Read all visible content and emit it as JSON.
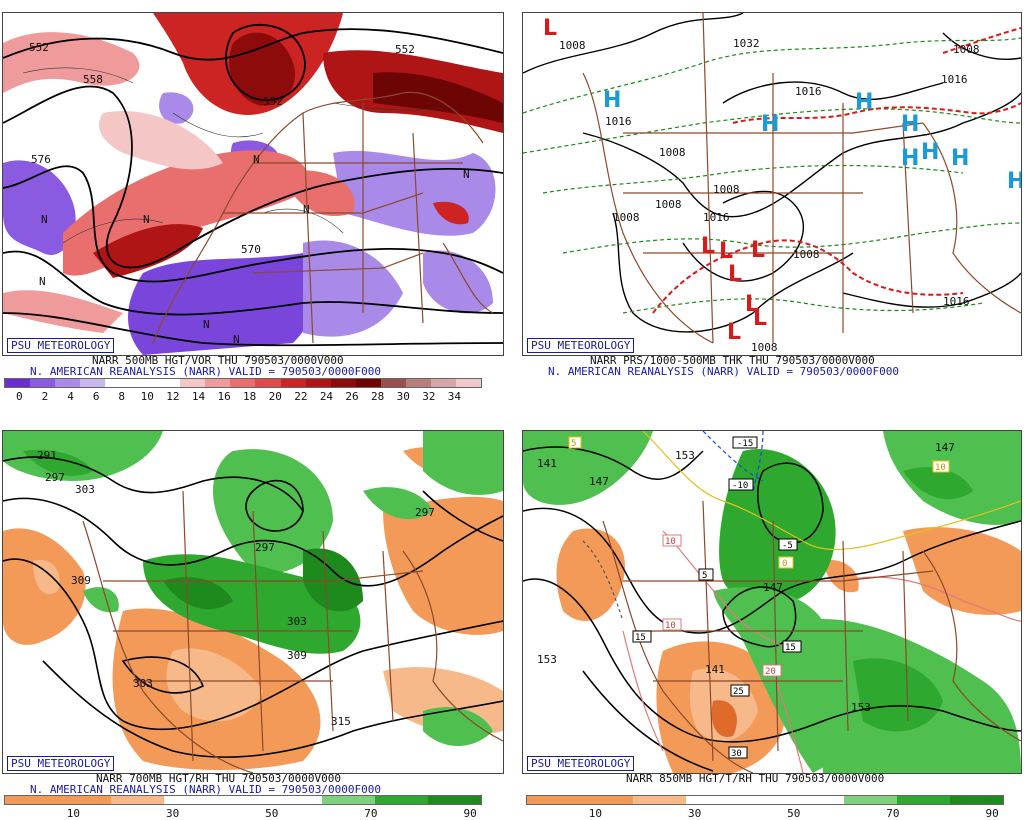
{
  "badge": "PSU METEOROLOGY",
  "panels": {
    "tl": {
      "caption1": "NARR 500MB HGT/VOR THU 790503/0000V000",
      "caption2": "N. AMERICAN REANALYSIS (NARR) VALID = 790503/0000F000",
      "colorbar": {
        "colors": [
          "#6a2dd0",
          "#8a5ae0",
          "#a98ae8",
          "#c8b6f0",
          "#ffffff",
          "#ffffff",
          "#ffffff",
          "#f4c6c6",
          "#ef9b9b",
          "#e96f6f",
          "#e04a4a",
          "#cc2323",
          "#b01515",
          "#8e0b0b",
          "#6e0505",
          "#9a4e4e",
          "#b97d7d",
          "#d6a6a6",
          "#efc9c9"
        ],
        "ticks": [
          "0",
          "2",
          "4",
          "6",
          "8",
          "10",
          "12",
          "14",
          "16",
          "18",
          "20",
          "22",
          "24",
          "26",
          "28",
          "30",
          "32",
          "34"
        ]
      },
      "contour_labels": [
        "552",
        "558",
        "576",
        "576",
        "552",
        "552",
        "570"
      ],
      "n_marker": "N"
    },
    "tr": {
      "caption1": "NARR PRS/1000-500MB THK THU 790503/0000V000",
      "caption2": "N. AMERICAN REANALYSIS (NARR) VALID = 790503/0000F000",
      "isobar_labels": [
        "1008",
        "1032",
        "1016",
        "1016",
        "1008",
        "1008",
        "1008",
        "1008",
        "1016",
        "1008",
        "1016",
        "1008",
        "1016",
        "1008"
      ],
      "high_symbol": "H",
      "low_symbol": "L"
    },
    "bl": {
      "caption1": "NARR 700MB HGT/RH THU 790503/0000V000",
      "caption2": "N. AMERICAN REANALYSIS (NARR) VALID = 790503/0000F000",
      "colorbar": {
        "colors": [
          "#f39a58",
          "#f39a58",
          "#f7b98a",
          "#ffffff",
          "#ffffff",
          "#ffffff",
          "#7fd07f",
          "#2ea82e",
          "#1e8a1e"
        ],
        "ticks": [
          "10",
          "30",
          "50",
          "70",
          "90"
        ]
      },
      "contour_labels": [
        "291",
        "297",
        "303",
        "309",
        "297",
        "297",
        "303",
        "309",
        "303",
        "315"
      ]
    },
    "br": {
      "caption1": "NARR 850MB HGT/T/RH THU 790503/0000V000",
      "colorbar": {
        "colors": [
          "#f39a58",
          "#f39a58",
          "#f7b98a",
          "#ffffff",
          "#ffffff",
          "#ffffff",
          "#7fd07f",
          "#2ea82e",
          "#1e8a1e"
        ],
        "ticks": [
          "10",
          "30",
          "50",
          "70",
          "90"
        ]
      },
      "contour_labels": [
        "141",
        "147",
        "153",
        "147",
        "147",
        "153",
        "141",
        "153"
      ],
      "temp_boxes": [
        "-15",
        "-10",
        "-5",
        "5",
        "0",
        "10",
        "15",
        "15",
        "20",
        "25",
        "30",
        "10",
        "5",
        "10"
      ]
    }
  }
}
